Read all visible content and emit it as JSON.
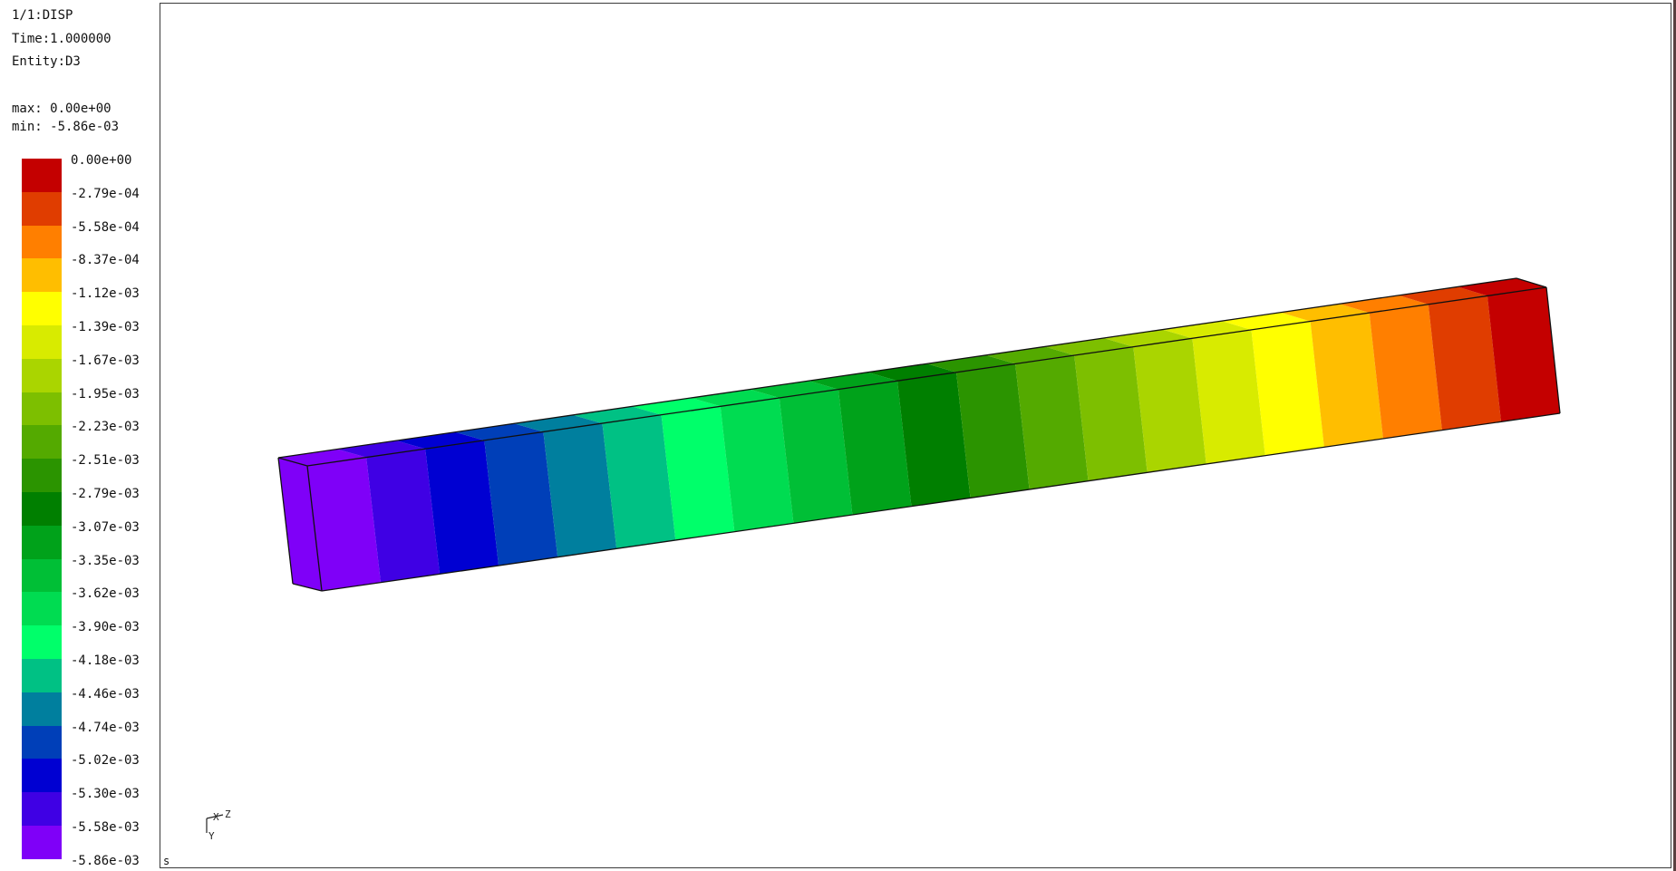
{
  "info": {
    "step": "1/1:DISP",
    "time": "Time:1.000000",
    "entity": "Entity:D3",
    "max": "max: 0.00e+00",
    "min": "min: -5.86e-03"
  },
  "legend": {
    "entries": [
      {
        "label": "0.00e+00",
        "color": "#c40000"
      },
      {
        "label": "-2.79e-04",
        "color": "#e03d00"
      },
      {
        "label": "-5.58e-04",
        "color": "#ff7f00"
      },
      {
        "label": "-8.37e-04",
        "color": "#ffbe00"
      },
      {
        "label": "-1.12e-03",
        "color": "#ffff00"
      },
      {
        "label": "-1.39e-03",
        "color": "#d8eb00"
      },
      {
        "label": "-1.67e-03",
        "color": "#aad500"
      },
      {
        "label": "-1.95e-03",
        "color": "#7dbf00"
      },
      {
        "label": "-2.23e-03",
        "color": "#54aa00"
      },
      {
        "label": "-2.51e-03",
        "color": "#2b9400"
      },
      {
        "label": "-2.79e-03",
        "color": "#007f00"
      },
      {
        "label": "-3.07e-03",
        "color": "#00a21a"
      },
      {
        "label": "-3.35e-03",
        "color": "#00bf36"
      },
      {
        "label": "-3.62e-03",
        "color": "#00dc51"
      },
      {
        "label": "-3.90e-03",
        "color": "#00ff6a"
      },
      {
        "label": "-4.18e-03",
        "color": "#00c184"
      },
      {
        "label": "-4.46e-03",
        "color": "#007f9e"
      },
      {
        "label": "-4.74e-03",
        "color": "#003fb8"
      },
      {
        "label": "-5.02e-03",
        "color": "#0000d2"
      },
      {
        "label": "-5.30e-03",
        "color": "#3f00e4"
      },
      {
        "label": "-5.58e-03",
        "color": "#7f00f8"
      }
    ],
    "bottom_label": "-5.86e-03"
  },
  "beam": {
    "band_colors": [
      "#7f00f8",
      "#3f00e4",
      "#0000d2",
      "#003fb8",
      "#007f9e",
      "#00c184",
      "#00ff6a",
      "#00dc51",
      "#00bf36",
      "#00a21a",
      "#007f00",
      "#2b9400",
      "#54aa00",
      "#7dbf00",
      "#aad500",
      "#d8eb00",
      "#ffff00",
      "#ffbe00",
      "#ff7f00",
      "#e03d00",
      "#c40000"
    ]
  },
  "triad": {
    "z_label": "Z",
    "x_label": "X",
    "y_label": "Y"
  },
  "viewport": {
    "corner_label": "s"
  }
}
